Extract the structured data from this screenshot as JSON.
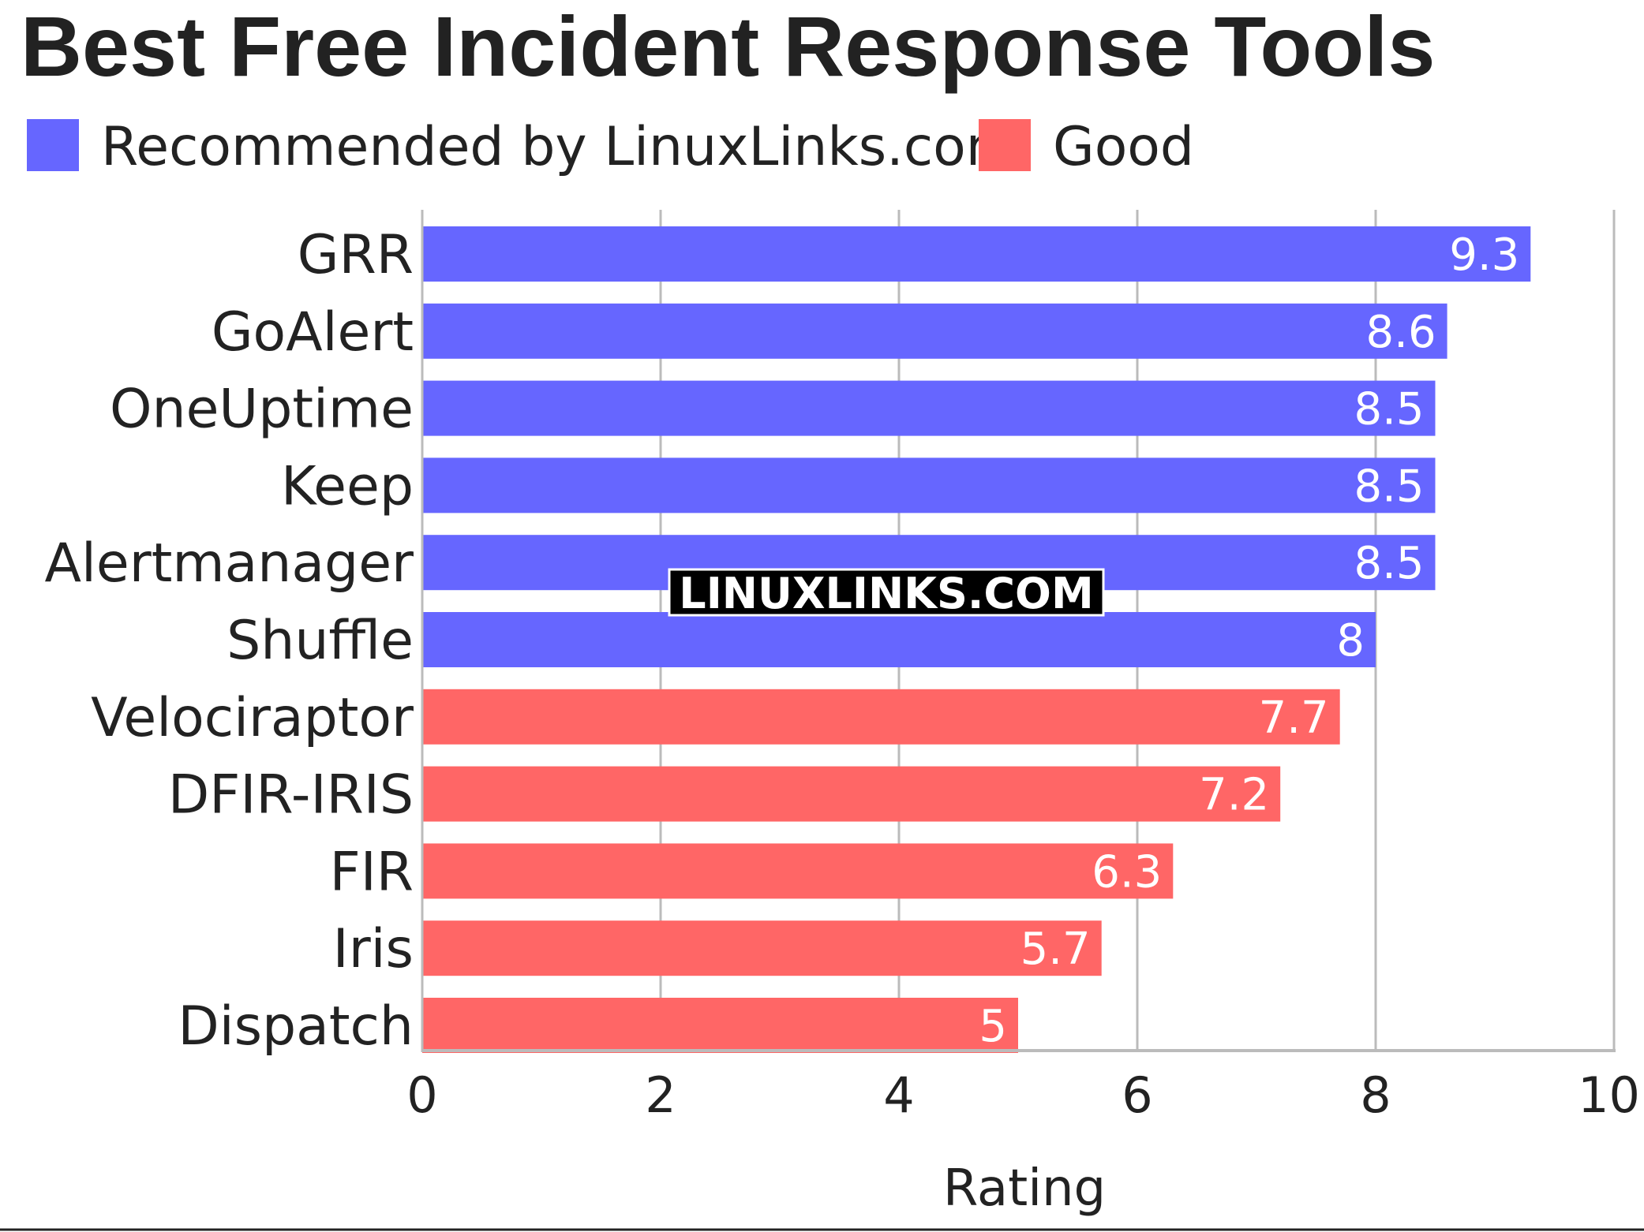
{
  "chart_data": {
    "type": "bar",
    "orientation": "horizontal",
    "title": "Best Free Incident Response Tools",
    "xlabel": "Rating",
    "ylabel": "",
    "xlim": [
      0,
      10
    ],
    "xticks": [
      0,
      2,
      4,
      6,
      8,
      10
    ],
    "grid": true,
    "legend_position": "top-left",
    "legend": [
      {
        "name": "Recommended by LinuxLinks.com",
        "color": "#6666ff"
      },
      {
        "name": "Good",
        "color": "#ff6666"
      }
    ],
    "categories": [
      "GRR",
      "GoAlert",
      "OneUptime",
      "Keep",
      "Alertmanager",
      "Shuffle",
      "Velociraptor",
      "DFIR-IRIS",
      "FIR",
      "Iris",
      "Dispatch"
    ],
    "values": [
      9.3,
      8.6,
      8.5,
      8.5,
      8.5,
      8,
      7.7,
      7.2,
      6.3,
      5.7,
      5
    ],
    "value_labels": [
      "9.3",
      "8.6",
      "8.5",
      "8.5",
      "8.5",
      "8",
      "7.7",
      "7.2",
      "6.3",
      "5.7",
      "5"
    ],
    "groups": [
      "Recommended by LinuxLinks.com",
      "Recommended by LinuxLinks.com",
      "Recommended by LinuxLinks.com",
      "Recommended by LinuxLinks.com",
      "Recommended by LinuxLinks.com",
      "Recommended by LinuxLinks.com",
      "Good",
      "Good",
      "Good",
      "Good",
      "Good"
    ],
    "watermark": "LINUXLINKS.COM"
  }
}
